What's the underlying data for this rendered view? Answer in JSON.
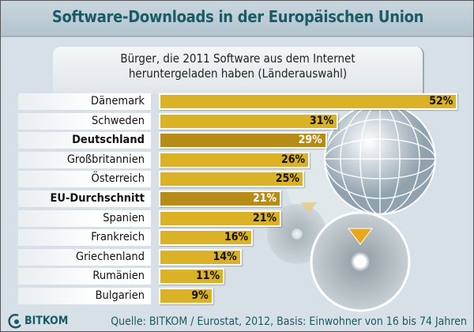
{
  "title": "Software-Downloads in der Europäischen Union",
  "subtitle_line1": "Bürger, die 2011 Software aus dem Internet",
  "subtitle_line2": "heruntergeladen haben (Länderauswahl)",
  "source": "Quelle: BITKOM / Eurostat, 2012, Basis: Einwohner von 16 bis 74 Jahren",
  "logo_text": "BITKOM",
  "colors": {
    "bar": "#dbb125",
    "bar_highlight": "#b58c17",
    "title": "#1b5a67",
    "background": "#d6e0e6"
  },
  "chart_data": {
    "type": "bar",
    "orientation": "horizontal",
    "title": "Software-Downloads in der Europäischen Union",
    "subtitle": "Bürger, die 2011 Software aus dem Internet heruntergeladen haben (Länderauswahl)",
    "categories": [
      "Dänemark",
      "Schweden",
      "Deutschland",
      "Großbritannien",
      "Österreich",
      "EU-Durchschnitt",
      "Spanien",
      "Frankreich",
      "Griechenland",
      "Rumänien",
      "Bulgarien"
    ],
    "values": [
      52,
      31,
      29,
      26,
      25,
      21,
      21,
      16,
      14,
      11,
      9
    ],
    "value_labels": [
      "52%",
      "31%",
      "29%",
      "26%",
      "25%",
      "21%",
      "21%",
      "16%",
      "14%",
      "11%",
      "9%"
    ],
    "highlighted": [
      "Deutschland",
      "EU-Durchschnitt"
    ],
    "unit": "%",
    "grid": false
  }
}
